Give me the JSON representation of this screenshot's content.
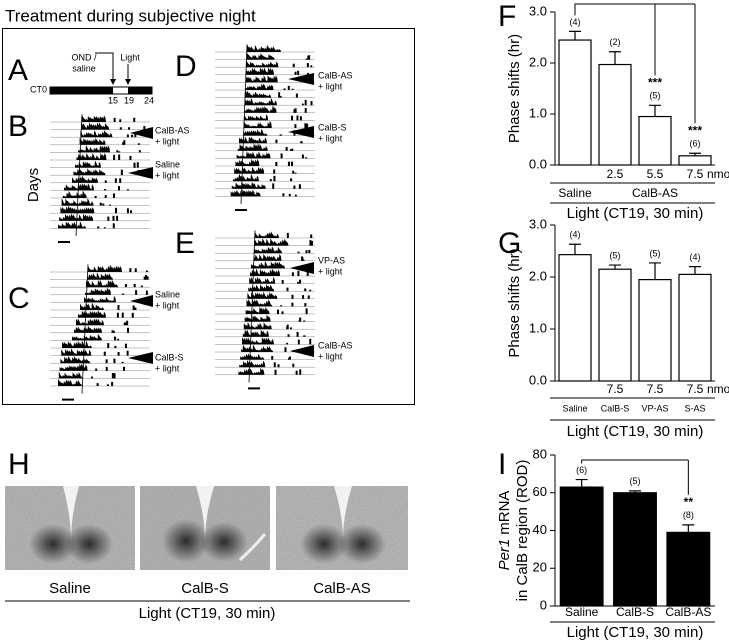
{
  "title": "Treatment during subjective night",
  "panel_letters": [
    "A",
    "B",
    "C",
    "D",
    "E",
    "F",
    "G",
    "H",
    "I"
  ],
  "schedule": {
    "injection": [
      "OND /",
      "saline"
    ],
    "light": "Light",
    "times": [
      "CT0",
      "15",
      "19",
      "24"
    ]
  },
  "days_label": "Days",
  "actogram_labels": {
    "B": [
      [
        "CalB-AS",
        "+ light"
      ],
      [
        "Saline",
        "+ light"
      ]
    ],
    "C": [
      [
        "Saline",
        "+ light"
      ],
      [
        "CalB-S",
        "+ light"
      ]
    ],
    "D": [
      [
        "CalB-AS",
        "+ light"
      ],
      [
        "CalB-S",
        "+ light"
      ]
    ],
    "E": [
      [
        "VP-AS",
        "+ light"
      ],
      [
        "CalB-AS",
        "+ light"
      ]
    ]
  },
  "images": {
    "labels": [
      "Saline",
      "CalB-S",
      "CalB-AS"
    ],
    "xlabel": "Light (CT19, 30 min)"
  },
  "chart_data": [
    {
      "type": "bar",
      "ylabel": "Phase shifts (hr)",
      "categories": [
        null,
        "2.5",
        "5.5",
        "7.5"
      ],
      "unit": "nmol",
      "group_labels": [
        "Saline",
        null,
        "CalB-AS",
        null
      ],
      "xlabel": "Light (CT19, 30 min)",
      "values": [
        2.45,
        1.97,
        0.95,
        0.18
      ],
      "errors": [
        0.17,
        0.25,
        0.22,
        0.05
      ],
      "n_labels": [
        "(4)",
        "(2)",
        "(5)",
        "(6)"
      ],
      "significance": [
        null,
        null,
        "***",
        "***"
      ],
      "color": "#ffffff",
      "edgecolor": "#000000",
      "ylim": [
        0,
        3
      ],
      "yticks": [
        {
          "value": 0,
          "label": "0.0"
        },
        {
          "value": 1,
          "label": "1.0"
        },
        {
          "value": 2,
          "label": "2.0"
        },
        {
          "value": 3,
          "label": "3.0"
        }
      ]
    },
    {
      "type": "bar",
      "ylabel": "Phase shifts (hr)",
      "categories": [
        null,
        "7.5",
        "7.5",
        "7.5"
      ],
      "unit": "nmol",
      "group_labels": [
        "Saline",
        "CalB-S",
        "VP-AS",
        "S-AS"
      ],
      "xlabel": "Light (CT19, 30 min)",
      "values": [
        2.43,
        2.15,
        1.95,
        2.05
      ],
      "errors": [
        0.2,
        0.08,
        0.32,
        0.15
      ],
      "n_labels": [
        "(4)",
        "(5)",
        "(5)",
        "(4)"
      ],
      "significance": [
        null,
        null,
        null,
        null
      ],
      "color": "#ffffff",
      "edgecolor": "#000000",
      "ylim": [
        0,
        3
      ],
      "yticks": [
        {
          "value": 0,
          "label": "0.0"
        },
        {
          "value": 1,
          "label": "1.0"
        },
        {
          "value": 2,
          "label": "2.0"
        },
        {
          "value": 3,
          "label": "3.0"
        }
      ]
    },
    {
      "type": "bar",
      "ylabel_italic": "Per1",
      "ylabel": "mRNA",
      "ylabel2": "in CalB region (ROD)",
      "categories": [
        "Saline",
        "CalB-S",
        "CalB-AS"
      ],
      "xlabel": "Light (CT19, 30 min)",
      "values": [
        63,
        60,
        39
      ],
      "errors": [
        4,
        1,
        4
      ],
      "n_labels": [
        "(6)",
        "(5)",
        "(8)"
      ],
      "significance": [
        null,
        null,
        "**"
      ],
      "color": "#000000",
      "edgecolor": "#000000",
      "ylim": [
        0,
        80
      ],
      "yticks": [
        0,
        20,
        40,
        60,
        80
      ]
    }
  ]
}
